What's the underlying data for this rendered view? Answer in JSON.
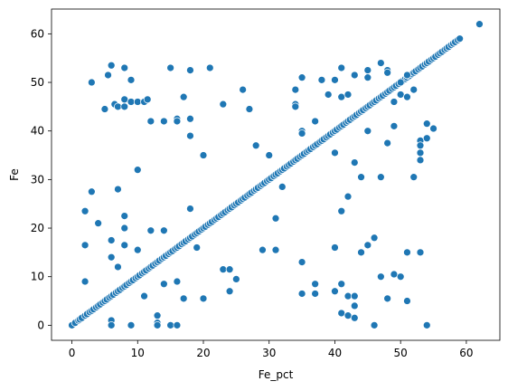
{
  "chart_data": {
    "type": "scatter",
    "title": "",
    "xlabel": "Fe_pct",
    "ylabel": "Fe",
    "xlim": [
      -3.1,
      65.1
    ],
    "ylim": [
      -3.1,
      65.1
    ],
    "xticks": [
      0,
      10,
      20,
      30,
      40,
      50,
      60
    ],
    "yticks": [
      0,
      10,
      20,
      30,
      40,
      50,
      60
    ],
    "grid": false,
    "color": "#1f77b4",
    "diagonal_x": [
      0,
      0.5,
      1,
      1.2,
      1.5,
      2,
      2.3,
      2.7,
      3,
      3.3,
      3.7,
      4,
      4.3,
      4.7,
      5,
      5.3,
      5.7,
      6,
      6.3,
      6.7,
      7,
      7.3,
      7.7,
      8,
      8.3,
      8.7,
      9,
      9.3,
      9.7,
      10,
      10.3,
      10.7,
      11,
      11.3,
      11.7,
      12,
      12.3,
      12.7,
      13,
      13.3,
      13.7,
      14,
      14.3,
      14.7,
      15,
      15.3,
      15.7,
      16,
      16.3,
      16.7,
      17,
      17.3,
      17.7,
      18,
      18.3,
      18.7,
      19,
      19.3,
      19.7,
      20,
      20.3,
      20.7,
      21,
      21.3,
      21.7,
      22,
      22.3,
      22.7,
      23,
      23.3,
      23.7,
      24,
      24.3,
      24.7,
      25,
      25.3,
      25.7,
      26,
      26.3,
      26.7,
      27,
      27.3,
      27.7,
      28,
      28.3,
      28.7,
      29,
      29.3,
      29.7,
      30,
      30.3,
      30.7,
      31,
      31.3,
      31.7,
      32,
      32.3,
      32.7,
      33,
      33.3,
      33.7,
      34,
      34.3,
      34.7,
      35,
      35.3,
      35.7,
      36,
      36.3,
      36.7,
      37,
      37.3,
      37.7,
      38,
      38.3,
      38.7,
      39,
      39.3,
      39.7,
      40,
      40.3,
      40.7,
      41,
      41.3,
      41.7,
      42,
      42.3,
      42.7,
      43,
      43.3,
      43.7,
      44,
      44.3,
      44.7,
      45,
      45.3,
      45.7,
      46,
      46.3,
      46.7,
      47,
      47.3,
      47.7,
      48,
      48.3,
      48.7,
      49,
      49.3,
      49.7,
      50,
      50.3,
      50.7,
      51,
      51.3,
      51.7,
      52,
      52.3,
      52.7,
      53,
      53.3,
      53.7,
      54,
      54.3,
      54.7,
      55,
      55.3,
      55.7,
      56,
      56.3,
      56.7,
      57,
      57.3,
      57.7,
      58,
      58.3,
      58.7,
      59,
      62
    ],
    "outliers": [
      [
        3,
        50
      ],
      [
        5,
        44.5
      ],
      [
        5.5,
        51.5
      ],
      [
        6,
        53.5
      ],
      [
        6.5,
        45.5
      ],
      [
        7,
        45
      ],
      [
        8,
        53
      ],
      [
        8,
        45
      ],
      [
        8,
        46.5
      ],
      [
        9,
        50.5
      ],
      [
        9,
        46
      ],
      [
        10,
        46
      ],
      [
        11,
        46
      ],
      [
        11.5,
        46.5
      ],
      [
        12,
        42
      ],
      [
        14,
        42
      ],
      [
        15,
        53
      ],
      [
        16,
        42.5
      ],
      [
        16,
        42
      ],
      [
        17,
        47
      ],
      [
        18,
        52.5
      ],
      [
        18,
        42.5
      ],
      [
        18,
        39
      ],
      [
        21,
        53
      ],
      [
        23,
        45.5
      ],
      [
        26,
        48.5
      ],
      [
        27,
        44.5
      ],
      [
        2,
        23.5
      ],
      [
        2,
        16.5
      ],
      [
        2,
        9
      ],
      [
        3,
        27.5
      ],
      [
        4,
        21
      ],
      [
        6,
        17.5
      ],
      [
        6,
        14
      ],
      [
        6,
        1
      ],
      [
        6,
        0
      ],
      [
        7,
        28
      ],
      [
        7,
        12
      ],
      [
        8,
        22.5
      ],
      [
        8,
        20
      ],
      [
        8,
        16.5
      ],
      [
        9,
        0
      ],
      [
        10,
        32
      ],
      [
        10,
        15.5
      ],
      [
        11,
        6
      ],
      [
        12,
        19.5
      ],
      [
        13,
        2
      ],
      [
        13,
        0.5
      ],
      [
        13,
        0
      ],
      [
        14,
        19.5
      ],
      [
        14,
        8.5
      ],
      [
        15,
        0
      ],
      [
        16,
        0
      ],
      [
        16,
        9
      ],
      [
        17,
        5.5
      ],
      [
        18,
        24
      ],
      [
        19,
        16
      ],
      [
        20,
        35
      ],
      [
        20,
        5.5
      ],
      [
        23,
        11.5
      ],
      [
        24,
        11.5
      ],
      [
        24,
        7
      ],
      [
        25,
        9.5
      ],
      [
        28,
        37
      ],
      [
        29,
        15.5
      ],
      [
        30,
        35
      ],
      [
        31,
        22
      ],
      [
        31,
        15.5
      ],
      [
        32,
        28.5
      ],
      [
        34,
        48.5
      ],
      [
        34,
        45.5
      ],
      [
        34,
        45
      ],
      [
        35,
        51
      ],
      [
        35,
        40
      ],
      [
        35,
        39.5
      ],
      [
        35,
        13
      ],
      [
        35,
        6.5
      ],
      [
        37,
        42
      ],
      [
        37,
        6.5
      ],
      [
        37,
        8.5
      ],
      [
        38,
        50.5
      ],
      [
        39,
        47.5
      ],
      [
        40,
        35.5
      ],
      [
        40,
        16
      ],
      [
        40,
        7
      ],
      [
        40,
        50.5
      ],
      [
        41,
        53
      ],
      [
        41,
        47
      ],
      [
        41,
        23.5
      ],
      [
        41,
        8.5
      ],
      [
        41,
        2.5
      ],
      [
        42,
        47.5
      ],
      [
        42,
        26.5
      ],
      [
        42,
        6
      ],
      [
        42,
        2
      ],
      [
        43,
        51.5
      ],
      [
        43,
        33.5
      ],
      [
        43,
        6
      ],
      [
        43,
        4
      ],
      [
        43,
        1.5
      ],
      [
        44,
        30.5
      ],
      [
        44,
        15
      ],
      [
        45,
        52.5
      ],
      [
        45,
        51
      ],
      [
        45,
        40
      ],
      [
        45,
        16.5
      ],
      [
        46,
        18
      ],
      [
        46,
        0
      ],
      [
        47,
        54
      ],
      [
        47,
        30.5
      ],
      [
        47,
        10
      ],
      [
        48,
        52.5
      ],
      [
        48,
        52
      ],
      [
        48,
        37.5
      ],
      [
        48,
        5.5
      ],
      [
        49,
        46
      ],
      [
        49,
        41
      ],
      [
        49,
        10.5
      ],
      [
        50,
        50
      ],
      [
        50,
        47.5
      ],
      [
        50,
        10
      ],
      [
        51,
        51.5
      ],
      [
        51,
        47
      ],
      [
        51,
        15
      ],
      [
        51,
        5
      ],
      [
        52,
        48.5
      ],
      [
        52,
        30.5
      ],
      [
        53,
        38
      ],
      [
        53,
        37
      ],
      [
        53,
        35.5
      ],
      [
        53,
        34
      ],
      [
        53,
        15
      ],
      [
        54,
        41.5
      ],
      [
        54,
        38.5
      ],
      [
        54,
        0
      ],
      [
        55,
        40.5
      ]
    ]
  }
}
